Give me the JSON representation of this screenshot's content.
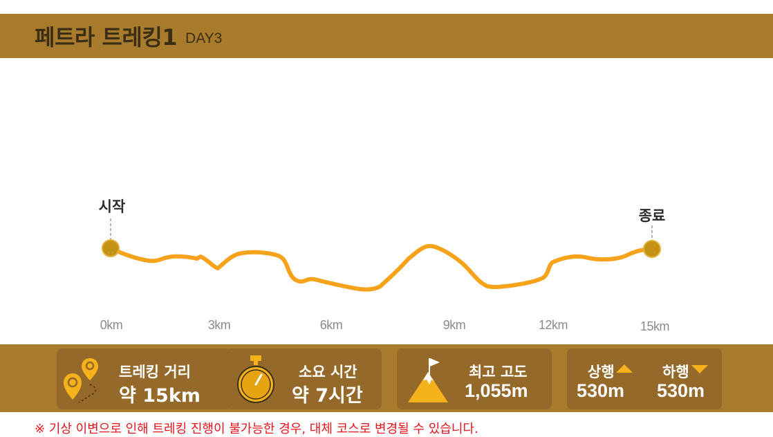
{
  "header": {
    "title": "페트라 트레킹1",
    "subtitle": "DAY3",
    "background": "#a87c2c"
  },
  "profile": {
    "start_label": "시작",
    "end_label": "종료",
    "line_color": "#f7a21b",
    "marker_color": "#c49217",
    "km_labels": [
      "0km",
      "3km",
      "6km",
      "9km",
      "12km",
      "15km"
    ]
  },
  "stats": {
    "distance": {
      "title": "트레킹 거리",
      "value": "약 15km",
      "icon": "map-pin-route-icon"
    },
    "duration": {
      "title": "소요 시간",
      "value": "약 7시간",
      "icon": "stopwatch-icon"
    },
    "altitude": {
      "title": "최고 고도",
      "value": "1,055m",
      "icon": "mountain-flag-icon"
    },
    "ascent": {
      "title": "상행",
      "value": "530m",
      "icon": "arrow-up-icon"
    },
    "descent": {
      "title": "하행",
      "value": "530m",
      "icon": "arrow-down-icon"
    }
  },
  "notice": "※ 기상 이변으로 인해 트레킹 진행이 불가능한 경우, 대체 코스로 변경될 수 있습니다."
}
